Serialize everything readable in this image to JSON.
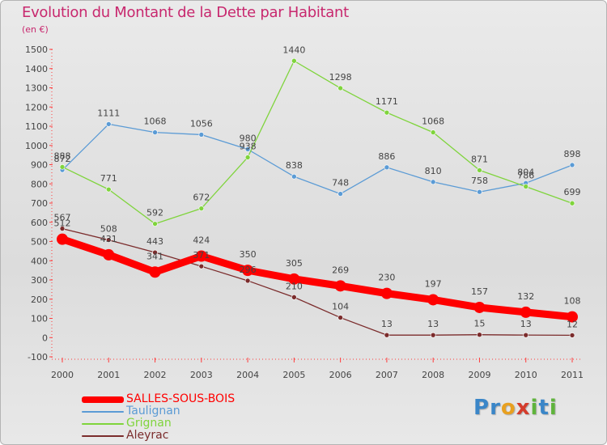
{
  "chart_data": {
    "type": "line",
    "title": "Evolution du Montant de la Dette par Habitant",
    "subtitle": "(en €)",
    "xlabel": "",
    "ylabel": "",
    "categories": [
      "2000",
      "2001",
      "2002",
      "2003",
      "2004",
      "2005",
      "2006",
      "2007",
      "2008",
      "2009",
      "2010",
      "2011"
    ],
    "ylim": [
      -100,
      1500
    ],
    "yticks": [
      -100,
      0,
      100,
      200,
      300,
      400,
      500,
      600,
      700,
      800,
      900,
      1000,
      1100,
      1200,
      1300,
      1400,
      1500
    ],
    "grid": false,
    "legend_position": "bottom-left",
    "series": [
      {
        "name": "SALLES-SOUS-BOIS",
        "color": "#ff0000",
        "values": [
          512,
          431,
          341,
          424,
          350,
          305,
          269,
          230,
          197,
          157,
          132,
          108
        ]
      },
      {
        "name": "Taulignan",
        "color": "#5b9bd5",
        "values": [
          872,
          1111,
          1068,
          1056,
          980,
          838,
          748,
          886,
          810,
          758,
          804,
          898
        ]
      },
      {
        "name": "Grignan",
        "color": "#7fd43c",
        "values": [
          888,
          771,
          592,
          672,
          938,
          1440,
          1298,
          1171,
          1068,
          871,
          786,
          699
        ]
      },
      {
        "name": "Aleyrac",
        "color": "#7b2c2c",
        "values": [
          567,
          508,
          443,
          371,
          296,
          210,
          104,
          13,
          13,
          15,
          13,
          12
        ]
      }
    ]
  },
  "branding": {
    "logo_text": "Proxiti",
    "logo_letters": [
      {
        "ch": "P",
        "color": "#3a86c8"
      },
      {
        "ch": "r",
        "color": "#3a86c8"
      },
      {
        "ch": "o",
        "color": "#e8a020"
      },
      {
        "ch": "x",
        "color": "#d43c2c"
      },
      {
        "ch": "i",
        "color": "#5fb43c"
      },
      {
        "ch": "t",
        "color": "#3a86c8"
      },
      {
        "ch": "i",
        "color": "#5fb43c"
      }
    ]
  }
}
